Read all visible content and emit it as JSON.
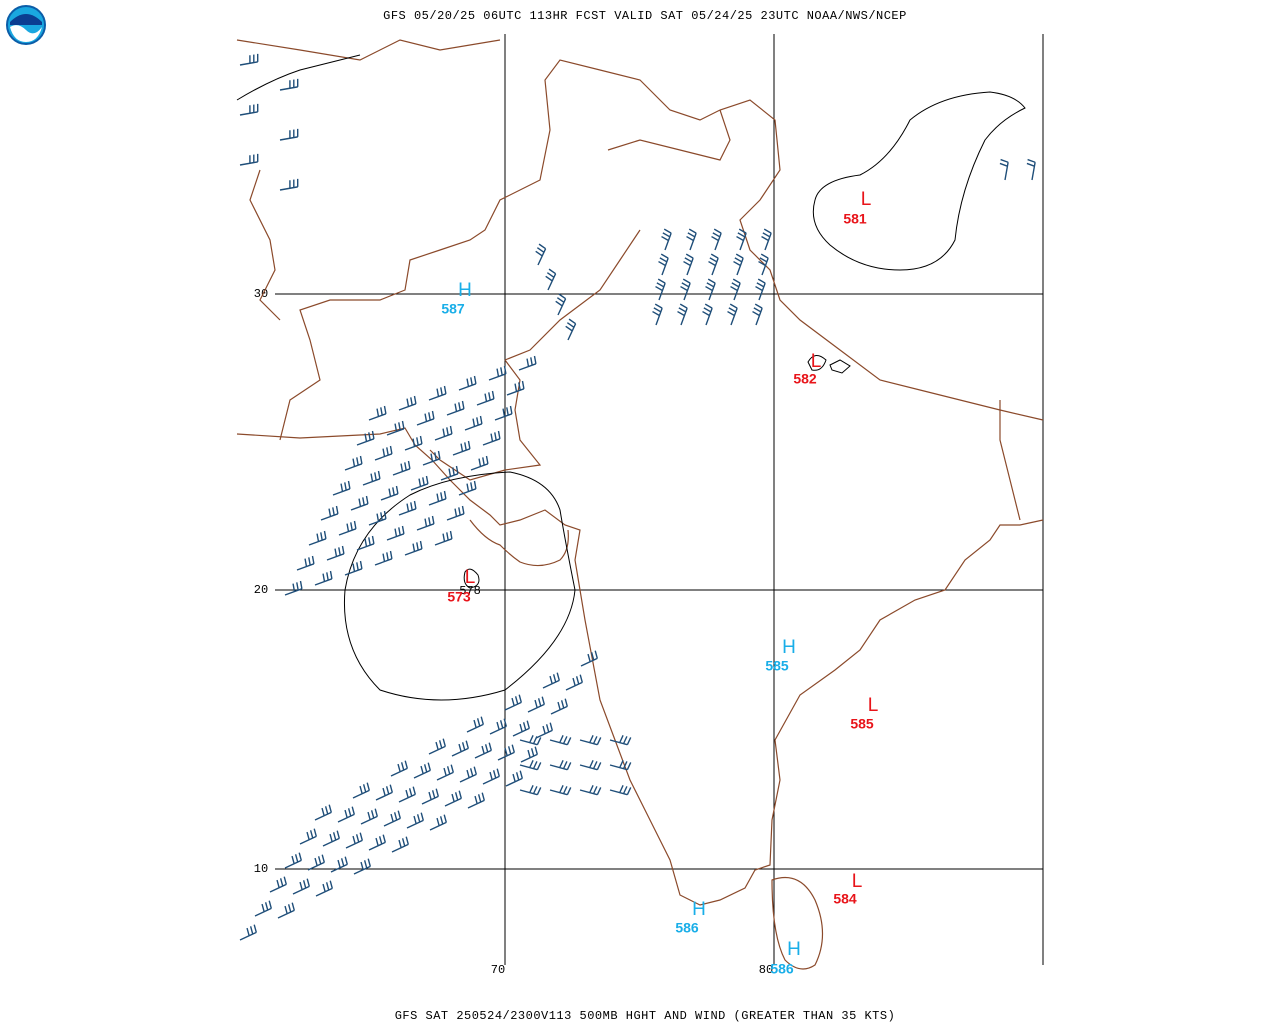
{
  "header": {
    "title": "GFS 05/20/25 06UTC 113HR FCST VALID SAT 05/24/25 23UTC NOAA/NWS/NCEP"
  },
  "footer": {
    "caption": "GFS SAT 250524/2300V113 500MB HGHT AND WIND (GREATER THAN 35 KTS)"
  },
  "grid": {
    "lat_labels": [
      "30",
      "20",
      "10"
    ],
    "lon_labels": [
      "70",
      "80"
    ]
  },
  "contour_labels": [
    "578"
  ],
  "centers": [
    {
      "symbol": "L",
      "value": 581
    },
    {
      "symbol": "H",
      "value": 587
    },
    {
      "symbol": "L",
      "value": 582
    },
    {
      "symbol": "L",
      "value": 573
    },
    {
      "symbol": "H",
      "value": 585
    },
    {
      "symbol": "L",
      "value": 585
    },
    {
      "symbol": "H",
      "value": 586
    },
    {
      "symbol": "L",
      "value": 584
    },
    {
      "symbol": "H",
      "value": 586
    }
  ]
}
